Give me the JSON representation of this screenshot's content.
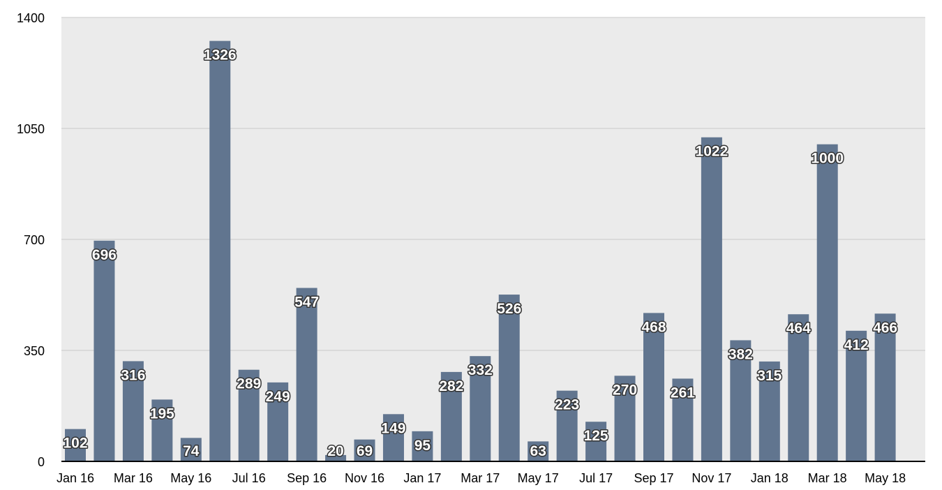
{
  "chart_data": {
    "type": "bar",
    "title": "",
    "xlabel": "",
    "ylabel": "",
    "ylim": [
      0,
      1400
    ],
    "yticks": [
      0,
      350,
      700,
      1050,
      1400
    ],
    "grid": true,
    "legend": "none",
    "colors": {
      "bar": "#61758f",
      "plot_bg": "#ebebeb",
      "grid": "#c8c8c8",
      "axis": "#000000"
    },
    "categories": [
      "Jan 16",
      "Feb 16",
      "Mar 16",
      "Apr 16",
      "May 16",
      "Jun 16",
      "Jul 16",
      "Aug 16",
      "Sep 16",
      "Oct 16",
      "Nov 16",
      "Dec 16",
      "Jan 17",
      "Feb 17",
      "Mar 17",
      "Apr 17",
      "May 17",
      "Jun 17",
      "Jul 17",
      "Aug 17",
      "Sep 17",
      "Oct 17",
      "Nov 17",
      "Dec 17",
      "Jan 18",
      "Feb 18",
      "Mar 18",
      "Apr 18",
      "May 18"
    ],
    "x_tick_labels": [
      "Jan 16",
      "Mar 16",
      "May 16",
      "Jul 16",
      "Sep 16",
      "Nov 16",
      "Jan 17",
      "Mar 17",
      "May 17",
      "Jul 17",
      "Sep 17",
      "Nov 17",
      "Jan 18",
      "Mar 18",
      "May 18"
    ],
    "values": [
      102,
      696,
      316,
      195,
      74,
      1326,
      289,
      249,
      547,
      20,
      69,
      149,
      95,
      282,
      332,
      526,
      63,
      223,
      125,
      270,
      468,
      261,
      1022,
      382,
      315,
      464,
      1000,
      412,
      466
    ]
  }
}
